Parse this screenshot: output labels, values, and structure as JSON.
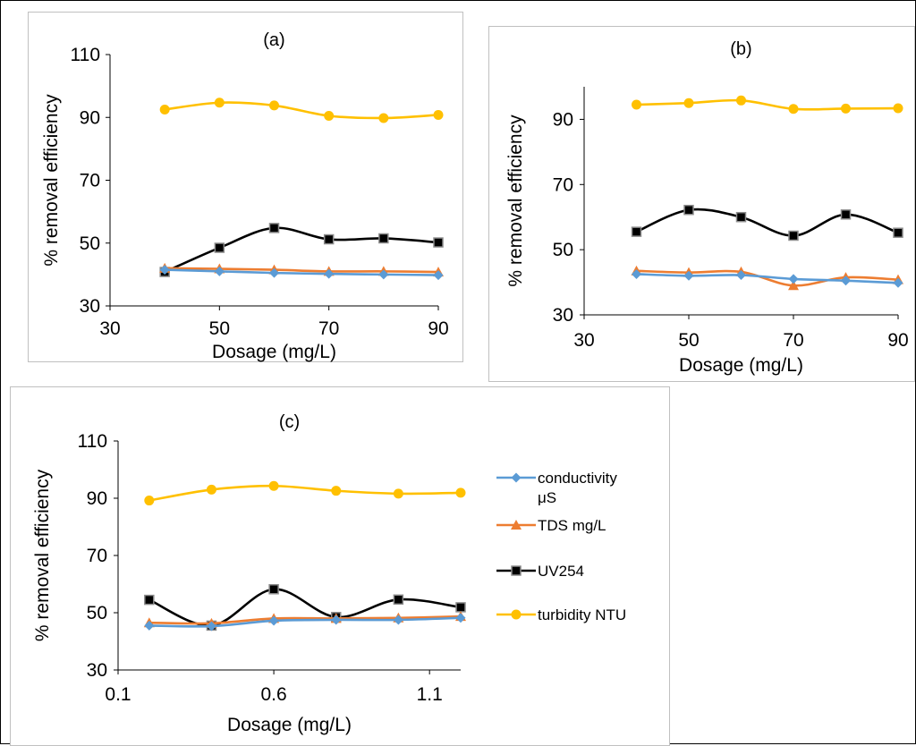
{
  "colors": {
    "conductivity": "#5B9BD5",
    "tds": "#ED7D31",
    "uv254": "#000000",
    "turbidity": "#FFC000",
    "axis": "#000000",
    "panel_border": "#c0c0c0"
  },
  "legend": {
    "items": [
      {
        "label": "conductivity μS",
        "series_key": "conductivity",
        "marker": "diamond"
      },
      {
        "label": "TDS mg/L",
        "series_key": "tds",
        "marker": "triangle"
      },
      {
        "label": "UV254",
        "series_key": "uv254",
        "marker": "square"
      },
      {
        "label": "turbidity NTU",
        "series_key": "turbidity",
        "marker": "circle"
      }
    ]
  },
  "chart_data": [
    {
      "type": "line",
      "title": "(a)",
      "xlabel": "Dosage (mg/L)",
      "ylabel": "% removal efficiency",
      "xlim": [
        30,
        90
      ],
      "ylim": [
        30,
        110
      ],
      "xticks": [
        30,
        50,
        70,
        90
      ],
      "yticks": [
        30,
        50,
        70,
        90,
        110
      ],
      "grid": false,
      "x": [
        40,
        50,
        60,
        70,
        80,
        90
      ],
      "series": [
        {
          "key": "conductivity",
          "values": [
            41.5,
            41.0,
            40.5,
            40.2,
            40.0,
            39.8
          ]
        },
        {
          "key": "tds",
          "values": [
            42.0,
            41.8,
            41.5,
            41.0,
            41.0,
            40.8
          ]
        },
        {
          "key": "uv254",
          "values": [
            40.8,
            48.5,
            54.8,
            51.2,
            51.5,
            50.2
          ]
        },
        {
          "key": "turbidity",
          "values": [
            92.5,
            94.7,
            93.8,
            90.5,
            89.8,
            90.8
          ]
        }
      ]
    },
    {
      "type": "line",
      "title": "(b)",
      "xlabel": "Dosage (mg/L)",
      "ylabel": "% removal efficiency",
      "xlim": [
        30,
        90
      ],
      "ylim": [
        30,
        100
      ],
      "xticks": [
        30,
        50,
        70,
        90
      ],
      "yticks": [
        30,
        50,
        70,
        90
      ],
      "grid": false,
      "x": [
        40,
        50,
        60,
        70,
        80,
        90
      ],
      "series": [
        {
          "key": "conductivity",
          "values": [
            42.5,
            42.0,
            42.2,
            41.0,
            40.5,
            39.8
          ]
        },
        {
          "key": "tds",
          "values": [
            43.5,
            43.0,
            43.2,
            39.0,
            41.5,
            40.8
          ]
        },
        {
          "key": "uv254",
          "values": [
            55.5,
            62.2,
            60.0,
            54.3,
            60.8,
            55.2
          ]
        },
        {
          "key": "turbidity",
          "values": [
            94.5,
            95.0,
            95.8,
            93.2,
            93.3,
            93.4
          ]
        }
      ]
    },
    {
      "type": "line",
      "title": "(c)",
      "xlabel": "Dosage (mg/L)",
      "ylabel": "% removal efficiency",
      "xlim": [
        0.1,
        1.2
      ],
      "ylim": [
        30,
        110
      ],
      "xticks": [
        0.1,
        0.6,
        1.1
      ],
      "yticks": [
        30,
        50,
        70,
        90,
        110
      ],
      "grid": false,
      "x": [
        0.2,
        0.4,
        0.6,
        0.8,
        1.0,
        1.2
      ],
      "series": [
        {
          "key": "conductivity",
          "values": [
            45.5,
            45.3,
            47.2,
            47.5,
            47.5,
            48.2
          ]
        },
        {
          "key": "tds",
          "values": [
            46.5,
            46.3,
            48.0,
            48.0,
            48.2,
            48.7
          ]
        },
        {
          "key": "uv254",
          "values": [
            54.5,
            45.5,
            58.2,
            48.5,
            54.6,
            51.9
          ]
        },
        {
          "key": "turbidity",
          "values": [
            89.2,
            93.0,
            94.3,
            92.6,
            91.6,
            91.9
          ]
        }
      ]
    }
  ]
}
